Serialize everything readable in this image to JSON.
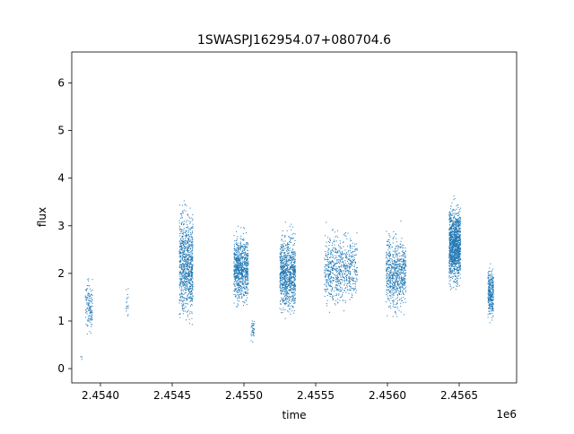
{
  "chart_data": {
    "type": "scatter",
    "title": "1SWASPJ162954.07+080704.6",
    "xlabel": "time",
    "ylabel": "flux",
    "x_offset_label": "1e6",
    "x_scale_factor": 1000000,
    "xlim": [
      2453800,
      2456900
    ],
    "ylim": [
      -0.3,
      6.65
    ],
    "x_ticks": [
      2454000,
      2454500,
      2455000,
      2455500,
      2456000,
      2456500
    ],
    "x_tick_labels": [
      "2.4540",
      "2.4545",
      "2.4550",
      "2.4555",
      "2.4560",
      "2.4565"
    ],
    "y_ticks": [
      0,
      1,
      2,
      3,
      4,
      5,
      6
    ],
    "y_tick_labels": [
      "0",
      "1",
      "2",
      "3",
      "4",
      "5",
      "6"
    ],
    "grid": false,
    "legend": "none",
    "marker_color": "#1f77b4",
    "clusters": [
      {
        "x_start": 2453860,
        "x_end": 2453875,
        "y_center": 0.2,
        "y_spread": 0.15,
        "points": 4
      },
      {
        "x_start": 2453895,
        "x_end": 2453945,
        "y_center": 1.3,
        "y_spread": 0.9,
        "points": 130
      },
      {
        "x_start": 2454180,
        "x_end": 2454195,
        "y_center": 1.4,
        "y_spread": 0.6,
        "points": 18
      },
      {
        "x_start": 2454550,
        "x_end": 2454645,
        "y_center": 2.2,
        "y_spread": 1.8,
        "points": 900
      },
      {
        "x_start": 2454930,
        "x_end": 2455030,
        "y_center": 2.1,
        "y_spread": 1.1,
        "points": 800
      },
      {
        "x_start": 2455050,
        "x_end": 2455075,
        "y_center": 0.8,
        "y_spread": 0.4,
        "points": 40
      },
      {
        "x_start": 2455250,
        "x_end": 2455360,
        "y_center": 2.0,
        "y_spread": 1.3,
        "points": 900
      },
      {
        "x_start": 2455560,
        "x_end": 2455790,
        "y_center": 2.1,
        "y_spread": 1.2,
        "points": 700
      },
      {
        "x_start": 2455990,
        "x_end": 2456130,
        "y_center": 2.0,
        "y_spread": 1.3,
        "points": 700
      },
      {
        "x_start": 2456430,
        "x_end": 2456510,
        "y_center": 2.6,
        "y_spread": 1.3,
        "points": 1200
      },
      {
        "x_start": 2456700,
        "x_end": 2456740,
        "y_center": 1.6,
        "y_spread": 0.8,
        "points": 300
      }
    ]
  }
}
